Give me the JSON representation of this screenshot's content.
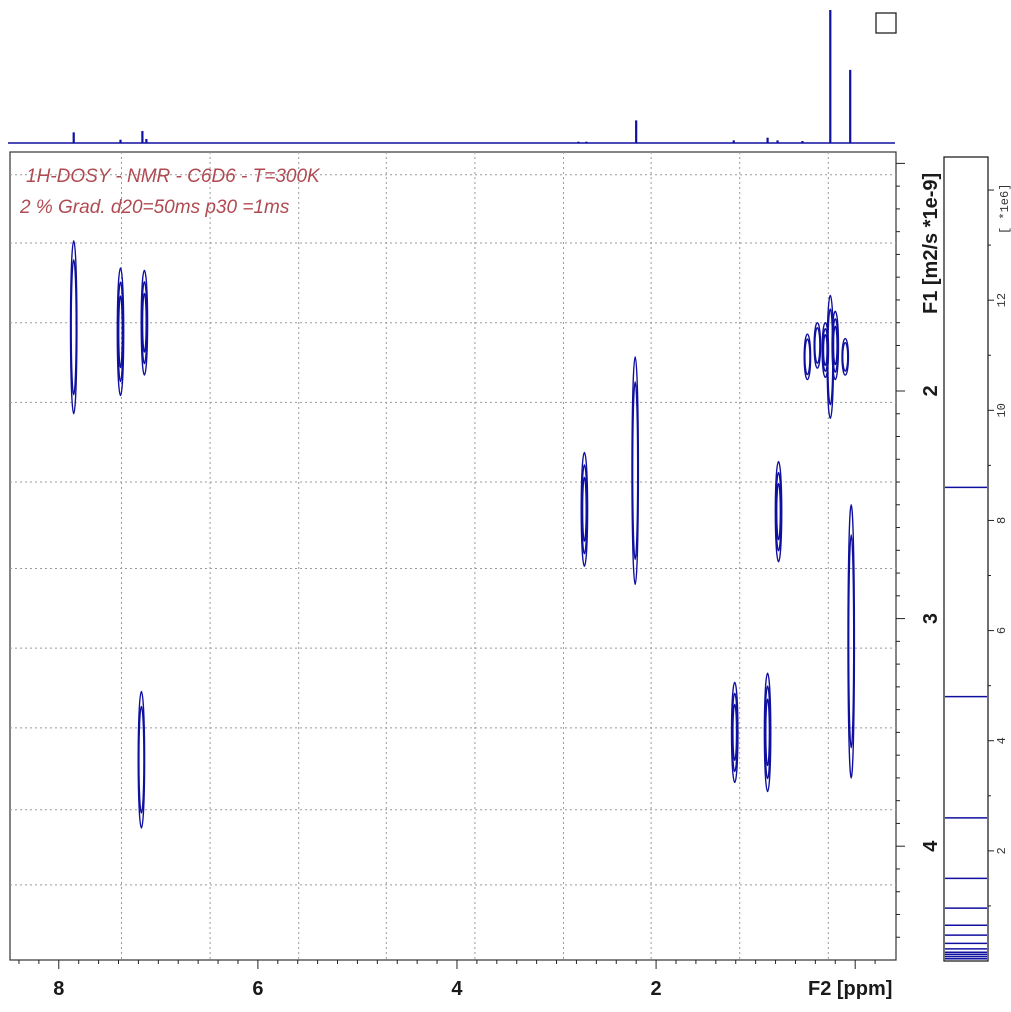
{
  "chart_data": {
    "type": "contour-2d",
    "annotation_lines": [
      "1H-DOSY - NMR - C6D6 - T=300K",
      "2 % Grad. d20=50ms p30 =1ms"
    ],
    "xlabel": "F2 [ppm]",
    "ylabel": "F1 [m2/s *1e-9]",
    "x_ticks": [
      "8",
      "6",
      "4",
      "2"
    ],
    "x_tick_values": [
      8,
      6,
      4,
      2
    ],
    "y_ticks": [
      "2",
      "3",
      "4"
    ],
    "y_tick_values": [
      2,
      3,
      4
    ],
    "xlim": [
      8.49,
      -0.41
    ],
    "ylim": [
      0.95,
      4.5
    ],
    "grid": true,
    "colorbar": {
      "label": "[ *1e6]",
      "tick_labels": [
        "2",
        "4",
        "6",
        "8",
        "10",
        "12"
      ],
      "tick_values": [
        2,
        4,
        6,
        8,
        10,
        12
      ],
      "range": [
        0,
        14.6
      ],
      "contour_levels": [
        8.6,
        4.8,
        2.6,
        1.5,
        0.96,
        0.65,
        0.47,
        0.32,
        0.22,
        0.12,
        0.04
      ]
    },
    "projection_1d": [
      {
        "ppm": 7.85,
        "height": 0.08
      },
      {
        "ppm": 7.38,
        "height": 0.025
      },
      {
        "ppm": 7.16,
        "height": 0.09
      },
      {
        "ppm": 7.12,
        "height": 0.03
      },
      {
        "ppm": 2.78,
        "height": 0.01
      },
      {
        "ppm": 2.7,
        "height": 0.01
      },
      {
        "ppm": 2.2,
        "height": 0.17
      },
      {
        "ppm": 1.22,
        "height": 0.02
      },
      {
        "ppm": 0.88,
        "height": 0.04
      },
      {
        "ppm": 0.78,
        "height": 0.02
      },
      {
        "ppm": 0.53,
        "height": 0.015
      },
      {
        "ppm": 0.25,
        "height": 1.0
      },
      {
        "ppm": 0.05,
        "height": 0.55
      }
    ],
    "cross_peaks": [
      {
        "ppm": 7.85,
        "d_center": 1.72,
        "d_halfspan": 0.38,
        "rings": 2
      },
      {
        "ppm": 7.38,
        "d_center": 1.74,
        "d_halfspan": 0.28,
        "rings": 3
      },
      {
        "ppm": 7.14,
        "d_center": 1.7,
        "d_halfspan": 0.23,
        "rings": 3
      },
      {
        "ppm": 7.17,
        "d_center": 3.62,
        "d_halfspan": 0.3,
        "rings": 2
      },
      {
        "ppm": 2.72,
        "d_center": 2.52,
        "d_halfspan": 0.25,
        "rings": 3
      },
      {
        "ppm": 2.21,
        "d_center": 2.35,
        "d_halfspan": 0.5,
        "rings": 2
      },
      {
        "ppm": 1.21,
        "d_center": 3.5,
        "d_halfspan": 0.22,
        "rings": 3
      },
      {
        "ppm": 0.88,
        "d_center": 3.5,
        "d_halfspan": 0.26,
        "rings": 3
      },
      {
        "ppm": 0.77,
        "d_center": 2.53,
        "d_halfspan": 0.22,
        "rings": 3
      },
      {
        "ppm": 0.48,
        "d_center": 1.85,
        "d_halfspan": 0.1,
        "rings": 2
      },
      {
        "ppm": 0.38,
        "d_center": 1.8,
        "d_halfspan": 0.1,
        "rings": 2
      },
      {
        "ppm": 0.3,
        "d_center": 1.82,
        "d_halfspan": 0.12,
        "rings": 3
      },
      {
        "ppm": 0.2,
        "d_center": 1.8,
        "d_halfspan": 0.15,
        "rings": 3
      },
      {
        "ppm": 0.1,
        "d_center": 1.85,
        "d_halfspan": 0.08,
        "rings": 2
      },
      {
        "ppm": 0.25,
        "d_center": 1.85,
        "d_halfspan": 0.27,
        "rings": 2
      },
      {
        "ppm": 0.04,
        "d_center": 3.1,
        "d_halfspan": 0.6,
        "rings": 2
      }
    ],
    "line_color": "#1010a0",
    "annotation_color": "#b04a52"
  }
}
